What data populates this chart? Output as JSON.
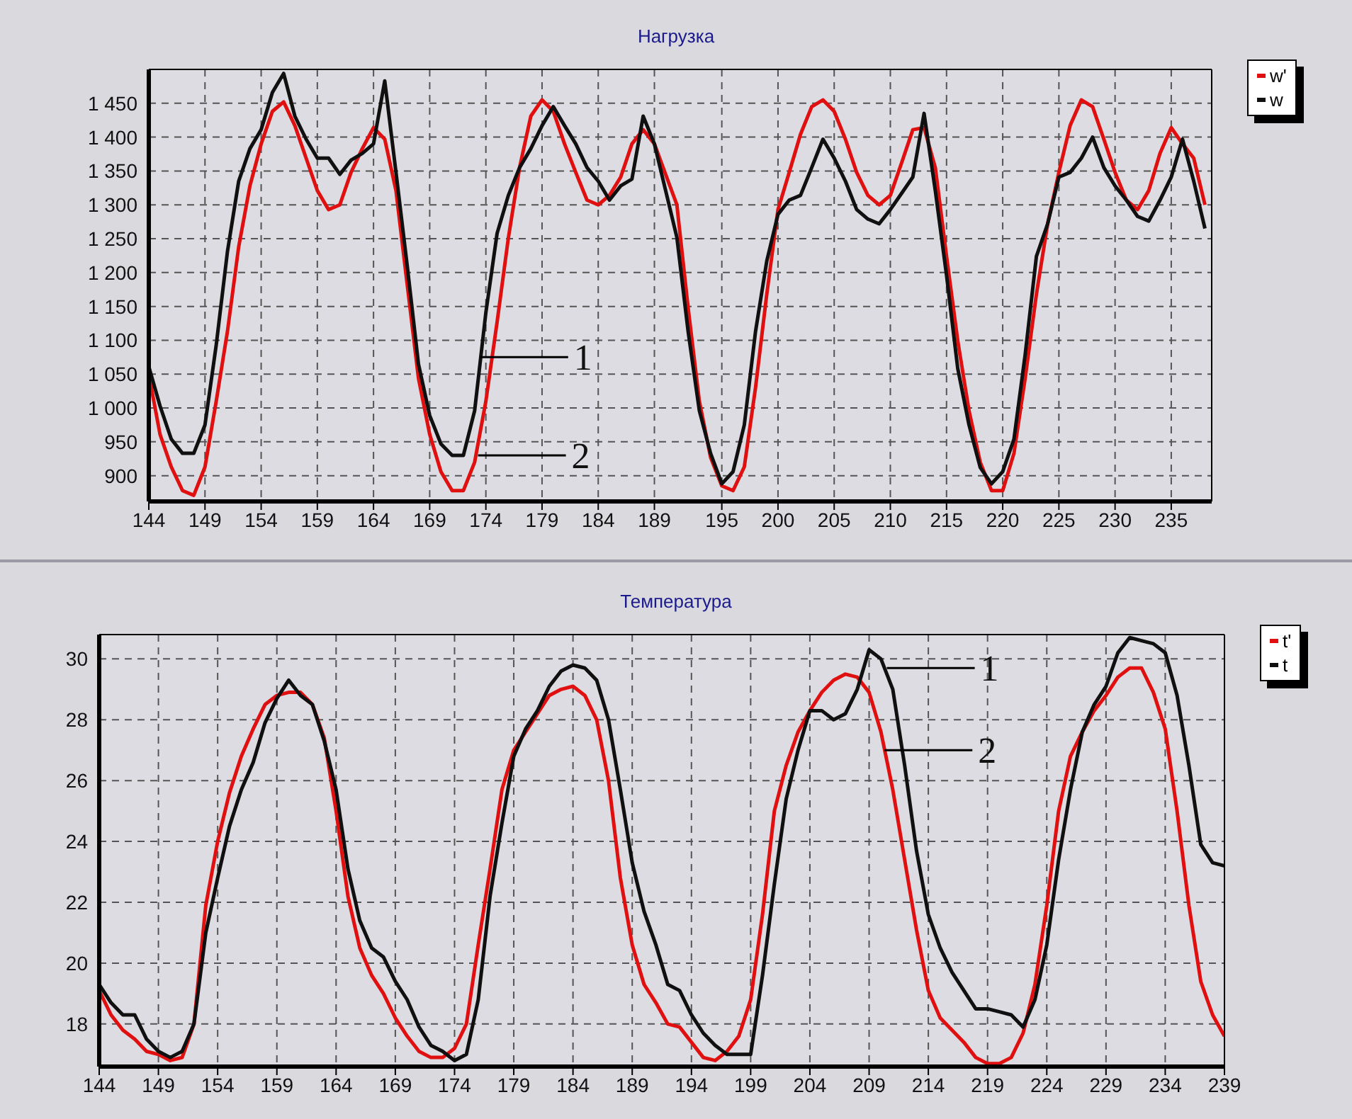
{
  "chart_data": [
    {
      "type": "line",
      "title": "Нагрузка",
      "legend": "top right",
      "grid": true,
      "marker": "none",
      "line_style": "solid",
      "x": [
        144,
        145,
        146,
        147,
        148,
        149,
        150,
        151,
        152,
        153,
        154,
        155,
        156,
        157,
        158,
        159,
        160,
        161,
        162,
        163,
        164,
        165,
        166,
        167,
        168,
        169,
        170,
        171,
        172,
        173,
        174,
        175,
        176,
        177,
        178,
        179,
        180,
        181,
        182,
        183,
        184,
        185,
        186,
        187,
        188,
        189,
        191,
        192,
        193,
        194,
        195,
        196,
        197,
        198,
        199,
        200,
        201,
        202,
        203,
        204,
        205,
        206,
        207,
        208,
        209,
        210,
        211,
        212,
        213,
        214,
        215,
        216,
        217,
        218,
        219,
        220,
        221,
        222,
        223,
        224,
        225,
        226,
        227,
        228,
        229,
        230,
        231,
        232,
        233,
        234,
        235,
        236,
        237,
        238
      ],
      "xlim": [
        144,
        238.6
      ],
      "xticks": [
        144,
        149,
        154,
        159,
        164,
        169,
        174,
        179,
        184,
        189,
        195,
        200,
        205,
        210,
        215,
        220,
        225,
        230,
        235
      ],
      "ylim": [
        862,
        1500
      ],
      "yticks": [
        900,
        950,
        {
          "value": 1000,
          "label": "1 000"
        },
        {
          "value": 1050,
          "label": "1 050"
        },
        {
          "value": 1100,
          "label": "1 100"
        },
        {
          "value": 1150,
          "label": "1 150"
        },
        {
          "value": 1200,
          "label": "1 200"
        },
        {
          "value": 1250,
          "label": "1 250"
        },
        {
          "value": 1300,
          "label": "1 300"
        },
        {
          "value": 1350,
          "label": "1 350"
        },
        {
          "value": 1400,
          "label": "1 400"
        },
        {
          "value": 1450,
          "label": "1 450"
        }
      ],
      "series": [
        {
          "name": "w'",
          "color": "#e01010",
          "values": [
            1050,
            961,
            913,
            878,
            871,
            913,
            1010,
            1113,
            1238,
            1328,
            1390,
            1438,
            1452,
            1417,
            1369,
            1321,
            1293,
            1300,
            1348,
            1383,
            1414,
            1397,
            1321,
            1182,
            1044,
            961,
            906,
            878,
            878,
            920,
            1010,
            1127,
            1251,
            1355,
            1431,
            1455,
            1438,
            1390,
            1348,
            1307,
            1300,
            1314,
            1341,
            1390,
            1411,
            1390,
            1300,
            1148,
            1010,
            927,
            885,
            878,
            913,
            1030,
            1168,
            1293,
            1348,
            1404,
            1445,
            1455,
            1438,
            1397,
            1348,
            1314,
            1300,
            1314,
            1362,
            1411,
            1414,
            1355,
            1224,
            1099,
            996,
            920,
            878,
            878,
            933,
            1044,
            1168,
            1272,
            1348,
            1417,
            1455,
            1445,
            1397,
            1348,
            1307,
            1293,
            1321,
            1376,
            1414,
            1390,
            1369,
            1300
          ]
        },
        {
          "name": "w",
          "color": "#101010",
          "values": [
            1061,
            1003,
            954,
            933,
            933,
            975,
            1093,
            1231,
            1335,
            1383,
            1411,
            1466,
            1494,
            1431,
            1397,
            1369,
            1369,
            1345,
            1366,
            1376,
            1390,
            1483,
            1348,
            1210,
            1065,
            989,
            947,
            930,
            930,
            996,
            1141,
            1258,
            1314,
            1355,
            1383,
            1417,
            1445,
            1417,
            1390,
            1355,
            1335,
            1307,
            1328,
            1338,
            1431,
            1390,
            1252,
            1113,
            996,
            933,
            888,
            906,
            975,
            1113,
            1217,
            1286,
            1307,
            1314,
            1355,
            1397,
            1369,
            1335,
            1293,
            1279,
            1272,
            1293,
            1317,
            1341,
            1435,
            1321,
            1196,
            1058,
            975,
            912,
            888,
            906,
            954,
            1079,
            1224,
            1272,
            1341,
            1348,
            1369,
            1400,
            1355,
            1328,
            1307,
            1283,
            1276,
            1307,
            1341,
            1397,
            1335,
            1265
          ]
        }
      ],
      "annotations": [
        {
          "text": "1",
          "x": 173.5,
          "y": 1075
        },
        {
          "text": "2",
          "x": 173.3,
          "y": 930
        }
      ]
    },
    {
      "type": "line",
      "title": "Температура",
      "legend": "top right",
      "grid": true,
      "marker": "none",
      "line_style": "solid",
      "x": [
        144,
        145,
        146,
        147,
        148,
        149,
        150,
        151,
        152,
        153,
        154,
        155,
        156,
        157,
        158,
        159,
        160,
        161,
        162,
        163,
        164,
        165,
        166,
        167,
        168,
        169,
        170,
        171,
        172,
        173,
        174,
        175,
        176,
        177,
        178,
        179,
        180,
        181,
        182,
        183,
        184,
        185,
        186,
        187,
        188,
        189,
        190,
        191,
        192,
        193,
        194,
        195,
        196,
        197,
        198,
        199,
        200,
        201,
        202,
        203,
        204,
        205,
        206,
        207,
        208,
        209,
        210,
        211,
        212,
        213,
        214,
        215,
        216,
        217,
        218,
        219,
        220,
        221,
        222,
        223,
        224,
        225,
        226,
        227,
        228,
        229,
        230,
        231,
        232,
        233,
        234,
        235,
        236,
        237,
        238,
        239
      ],
      "xlim": [
        144,
        239
      ],
      "xticks": [
        144,
        149,
        154,
        159,
        164,
        169,
        174,
        179,
        184,
        189,
        194,
        199,
        204,
        209,
        214,
        219,
        224,
        229,
        234,
        239
      ],
      "ylim": [
        16.6,
        30.8
      ],
      "yticks": [
        18,
        20,
        22,
        24,
        26,
        28,
        30
      ],
      "series": [
        {
          "name": "t'",
          "color": "#e01010",
          "values": [
            19.1,
            18.3,
            17.8,
            17.5,
            17.1,
            17.0,
            16.8,
            16.9,
            18.0,
            21.9,
            24.0,
            25.6,
            26.8,
            27.7,
            28.5,
            28.8,
            28.9,
            28.9,
            28.5,
            27.4,
            25.0,
            22.2,
            20.5,
            19.6,
            19.0,
            18.2,
            17.6,
            17.1,
            16.9,
            16.9,
            17.2,
            18.0,
            20.6,
            23.1,
            25.7,
            27.0,
            27.6,
            28.2,
            28.8,
            29.0,
            29.1,
            28.8,
            28.0,
            26.0,
            22.8,
            20.6,
            19.3,
            18.7,
            18.0,
            17.9,
            17.4,
            16.9,
            16.8,
            17.1,
            17.6,
            18.8,
            21.6,
            25.0,
            26.5,
            27.6,
            28.3,
            28.9,
            29.3,
            29.5,
            29.4,
            28.9,
            27.6,
            25.7,
            23.4,
            21.1,
            19.1,
            18.2,
            17.8,
            17.4,
            16.9,
            16.7,
            16.7,
            16.9,
            17.7,
            19.3,
            21.9,
            25.0,
            26.8,
            27.6,
            28.3,
            28.8,
            29.4,
            29.7,
            29.7,
            28.9,
            27.7,
            25.0,
            21.9,
            19.4,
            18.3,
            17.6
          ]
        },
        {
          "name": "t",
          "color": "#101010",
          "values": [
            19.3,
            18.7,
            18.3,
            18.3,
            17.5,
            17.1,
            16.9,
            17.1,
            18.0,
            21.0,
            22.8,
            24.5,
            25.7,
            26.6,
            27.9,
            28.7,
            29.3,
            28.8,
            28.5,
            27.3,
            25.7,
            23.1,
            21.4,
            20.5,
            20.2,
            19.4,
            18.8,
            17.9,
            17.3,
            17.1,
            16.8,
            17.0,
            18.8,
            22.2,
            24.6,
            26.8,
            27.7,
            28.3,
            29.1,
            29.6,
            29.8,
            29.7,
            29.3,
            28.0,
            25.7,
            23.3,
            21.7,
            20.6,
            19.3,
            19.1,
            18.3,
            17.7,
            17.3,
            17.0,
            17.0,
            17.0,
            19.6,
            22.6,
            25.4,
            27.0,
            28.3,
            28.3,
            28.0,
            28.2,
            29.0,
            30.3,
            30.0,
            29.0,
            26.5,
            23.7,
            21.6,
            20.5,
            19.7,
            19.1,
            18.5,
            18.5,
            18.4,
            18.3,
            17.9,
            18.8,
            20.6,
            23.4,
            25.7,
            27.6,
            28.5,
            29.1,
            30.2,
            30.7,
            30.6,
            30.5,
            30.2,
            28.8,
            26.5,
            23.9,
            23.3,
            23.2
          ]
        }
      ],
      "annotations": [
        {
          "text": "1",
          "x": 210.5,
          "y": 29.7
        },
        {
          "text": "2",
          "x": 210.3,
          "y": 27.0
        }
      ]
    }
  ]
}
